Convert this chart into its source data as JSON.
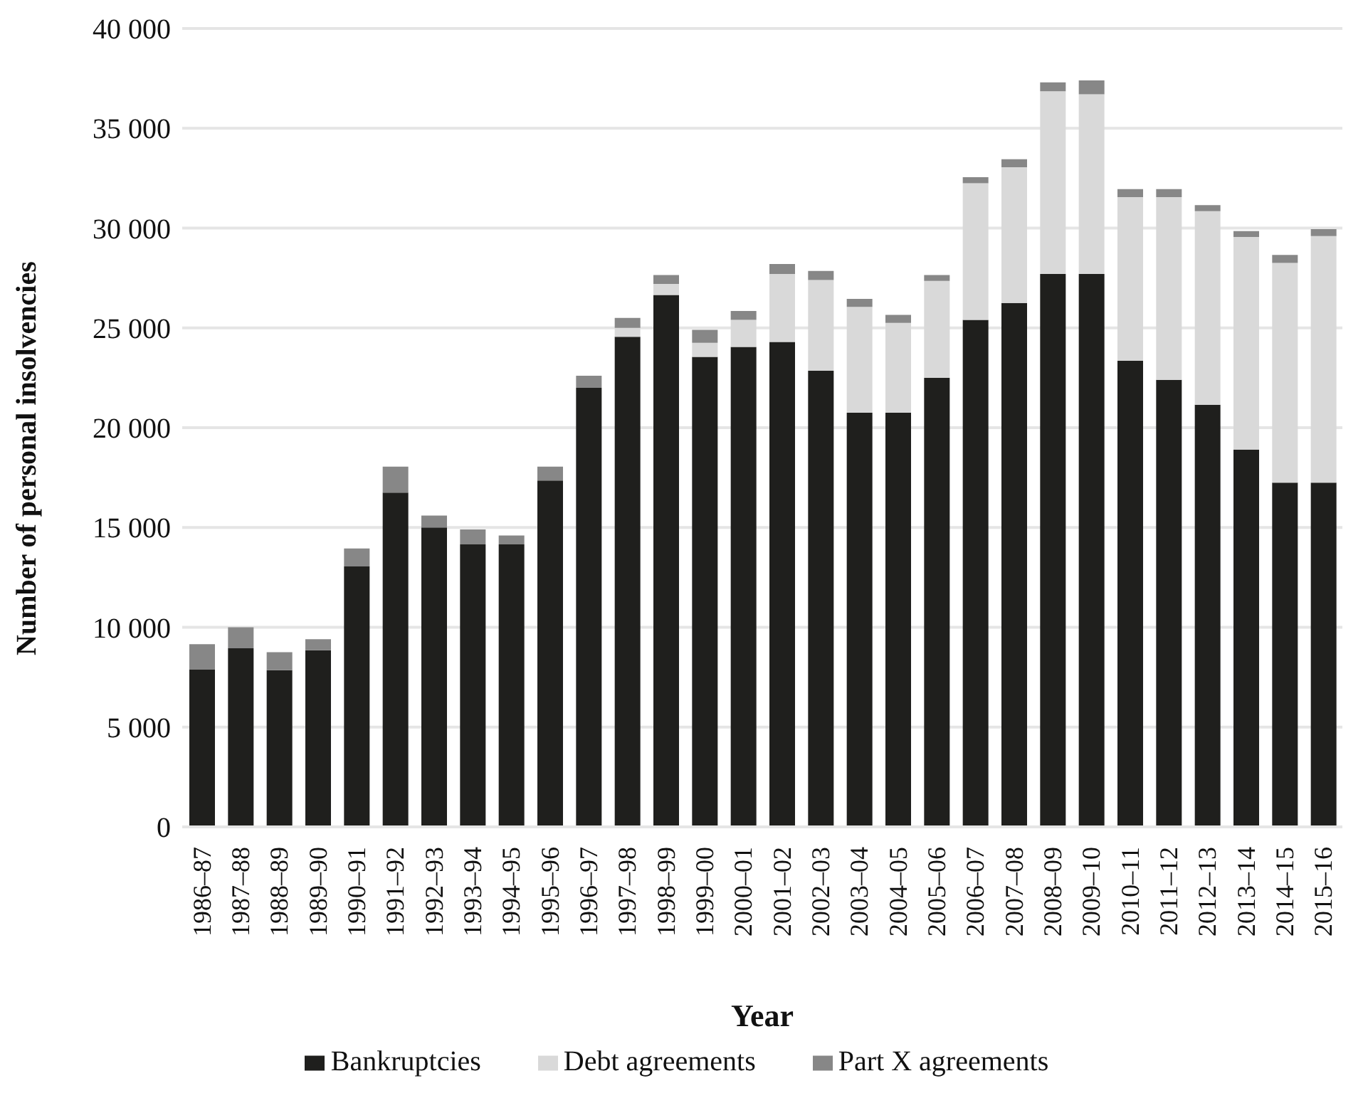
{
  "chart_data": {
    "type": "bar",
    "stacked": true,
    "categories": [
      "1986–87",
      "1987–88",
      "1988–89",
      "1989–90",
      "1990–91",
      "1991–92",
      "1992–93",
      "1993–94",
      "1994–95",
      "1995–96",
      "1996–97",
      "1997–98",
      "1998–99",
      "1999–00",
      "2000–01",
      "2001–02",
      "2002–03",
      "2003–04",
      "2004–05",
      "2005–06",
      "2006–07",
      "2007–08",
      "2008–09",
      "2009–10",
      "2010–11",
      "2011–12",
      "2012–13",
      "2013–14",
      "2014–15",
      "2015–16"
    ],
    "series": [
      {
        "name": "Bankruptcies",
        "color": "#1f1f1d",
        "values": [
          7900,
          8950,
          7850,
          8850,
          13050,
          16750,
          15000,
          14150,
          14150,
          17350,
          22000,
          24550,
          26650,
          23550,
          24050,
          24300,
          22850,
          20750,
          20750,
          22500,
          25400,
          26250,
          27700,
          27700,
          23350,
          22400,
          21150,
          18900,
          17250,
          17250
        ]
      },
      {
        "name": "Debt agreements",
        "color": "#d9d9d9",
        "values": [
          0,
          0,
          0,
          0,
          0,
          0,
          0,
          0,
          0,
          0,
          0,
          450,
          550,
          700,
          1350,
          3400,
          4550,
          5300,
          4500,
          4850,
          6850,
          6800,
          9150,
          9000,
          8200,
          9150,
          9700,
          10650,
          11000,
          12350
        ]
      },
      {
        "name": "Part X agreements",
        "color": "#878787",
        "values": [
          1250,
          1050,
          900,
          550,
          900,
          1300,
          600,
          750,
          450,
          700,
          600,
          500,
          450,
          650,
          450,
          500,
          450,
          400,
          400,
          300,
          300,
          400,
          450,
          700,
          400,
          400,
          300,
          300,
          400,
          350
        ]
      }
    ],
    "xlabel": "Year",
    "ylabel": "Number of personal insolvencies",
    "ylim": [
      0,
      40000
    ],
    "yticks": [
      0,
      {
        "value": 5000,
        "label": "5 000"
      },
      {
        "value": 10000,
        "label": "10 000"
      },
      {
        "value": 15000,
        "label": "15 000"
      },
      {
        "value": 20000,
        "label": "20 000"
      },
      {
        "value": 25000,
        "label": "25 000"
      },
      {
        "value": 30000,
        "label": "30 000"
      },
      {
        "value": 35000,
        "label": "35 000"
      },
      {
        "value": 40000,
        "label": "40 000"
      }
    ],
    "grid": "y",
    "legend": "bottom"
  }
}
